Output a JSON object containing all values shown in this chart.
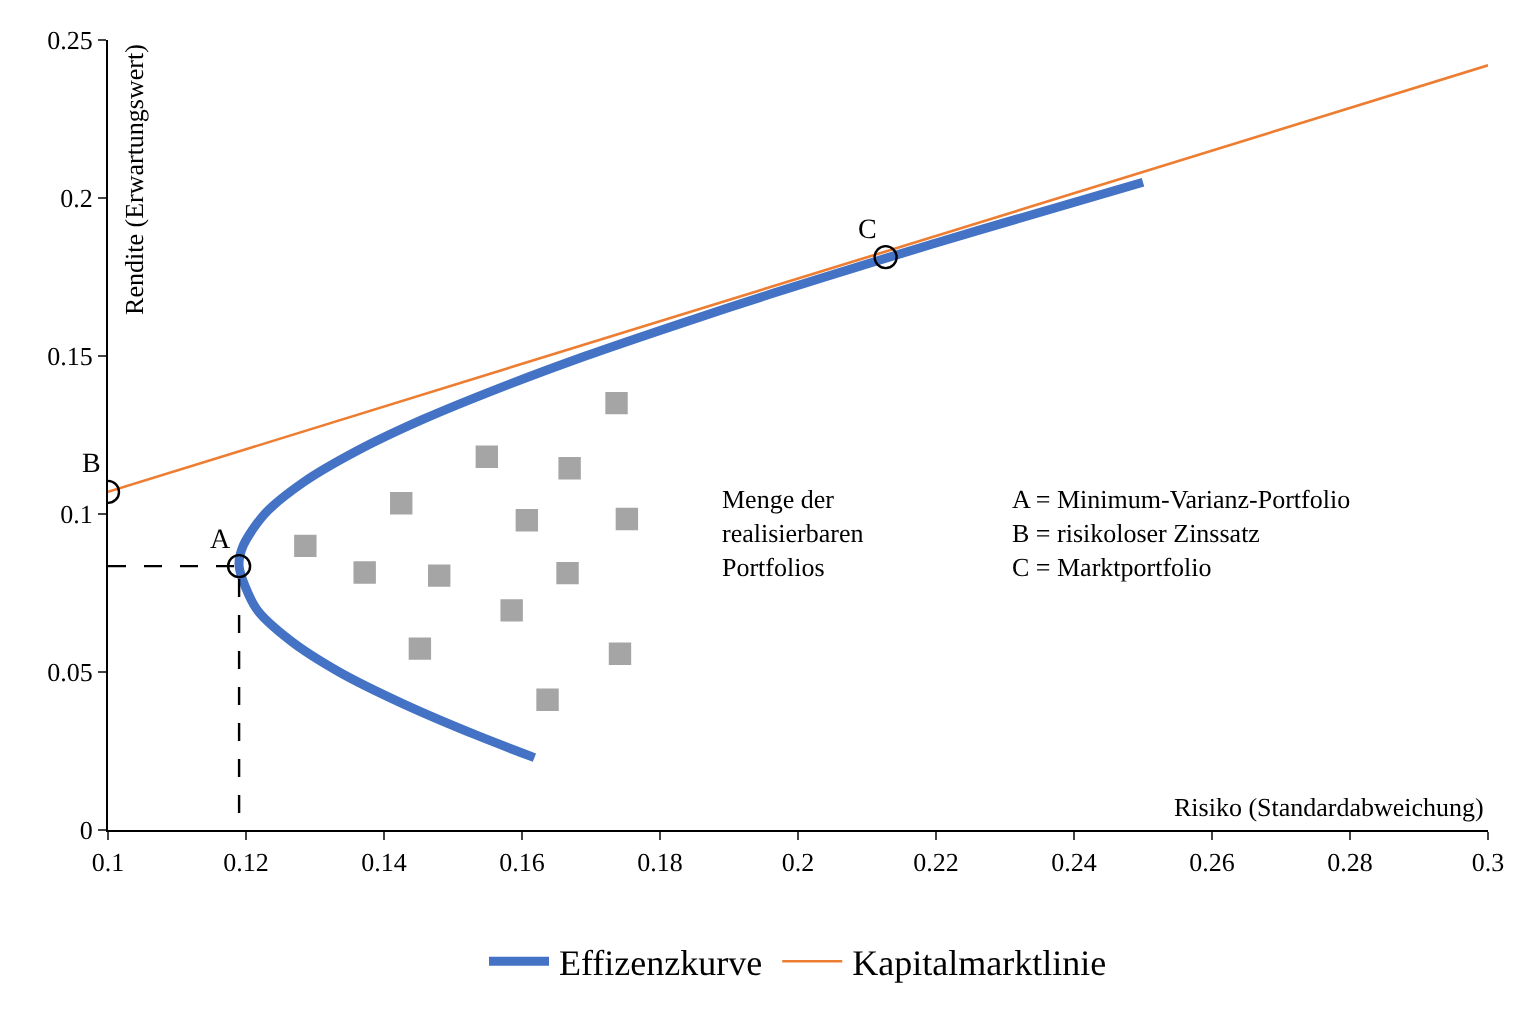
{
  "chart_data": {
    "type": "line",
    "xlabel": "Risiko (Standardabweichung)",
    "ylabel": "Rendite (Erwartungswert)",
    "xlim": [
      0.1,
      0.3
    ],
    "ylim": [
      0,
      0.25
    ],
    "xticks": [
      0.1,
      0.12,
      0.14,
      0.16,
      0.18,
      0.2,
      0.22,
      0.24,
      0.26,
      0.28,
      0.3
    ],
    "yticks": [
      0,
      0.05,
      0.1,
      0.15,
      0.2,
      0.25
    ],
    "legend": "bottom",
    "series": [
      {
        "name": "Effizenzkurve",
        "color": "#4472c4",
        "x": [
          0.1618,
          0.1534,
          0.1427,
          0.1335,
          0.1264,
          0.1215,
          0.119,
          0.1196,
          0.1227,
          0.1283,
          0.1361,
          0.1457,
          0.1569,
          0.1692,
          0.1826,
          0.1966,
          0.2113,
          0.2265,
          0.25
        ],
        "values": [
          0.0229,
          0.03,
          0.04,
          0.05,
          0.06,
          0.07,
          0.0835,
          0.09,
          0.1,
          0.11,
          0.12,
          0.13,
          0.14,
          0.15,
          0.16,
          0.17,
          0.18,
          0.19,
          0.205
        ]
      },
      {
        "name": "Kapitalmarktlinie",
        "color": "#ed7d31",
        "x": [
          0.1,
          0.3
        ],
        "values": [
          0.107,
          0.242
        ]
      },
      {
        "color": "#a5a5a5",
        "type": "scatter",
        "marker": "square",
        "x": [
          0.1737,
          0.1549,
          0.1669,
          0.1425,
          0.1607,
          0.1752,
          0.1286,
          0.1372,
          0.148,
          0.1666,
          0.1585,
          0.1452,
          0.1742,
          0.1637
        ],
        "values": [
          0.1351,
          0.1181,
          0.1145,
          0.1034,
          0.098,
          0.0984,
          0.0899,
          0.0815,
          0.0805,
          0.0813,
          0.0695,
          0.0574,
          0.0558,
          0.0412
        ]
      },
      {
        "color": "#000000",
        "line_style": "dashed",
        "x": [
          0.1,
          0.119,
          0.119
        ],
        "values": [
          0.0835,
          0.0835,
          0
        ]
      },
      {
        "color": "#000000",
        "type": "scatter",
        "marker": "circle",
        "x": [
          0.119,
          0.1,
          0.2127
        ],
        "values": [
          0.0835,
          0.107,
          0.1813
        ]
      }
    ],
    "annotations": [
      {
        "text": "A",
        "x": 0.119,
        "y": 0.0835
      },
      {
        "text": "B",
        "x": 0.1,
        "y": 0.107
      },
      {
        "text": "C",
        "x": 0.2127,
        "y": 0.1813
      },
      "Menge der\nrealisierbaren\nPortfolios",
      "A = Minimum-Varianz-Portfolio\nB = risikoloser Zinssatz\nC = Marktportfolio"
    ]
  }
}
